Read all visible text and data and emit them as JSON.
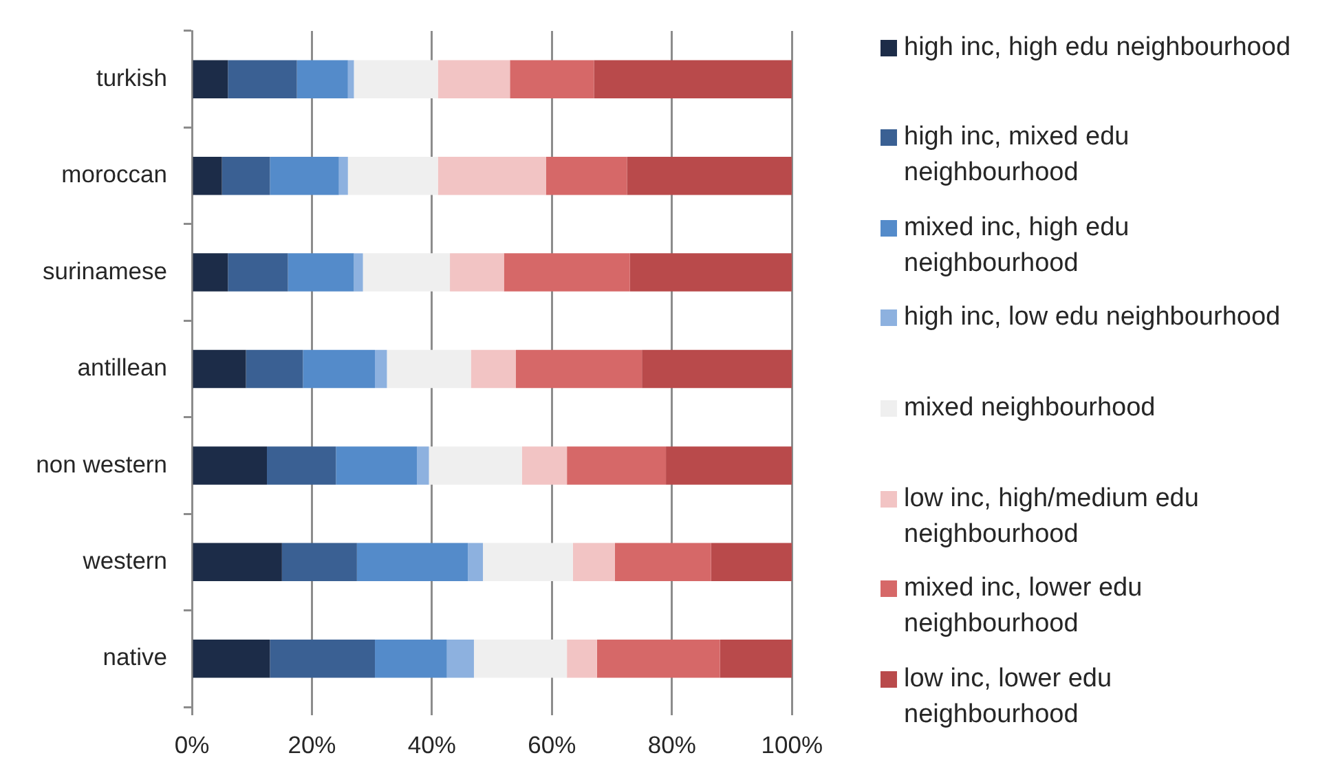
{
  "chart_data": {
    "type": "bar",
    "orientation": "horizontal",
    "stacked": true,
    "categories": [
      "turkish",
      "moroccan",
      "surinamese",
      "antillean",
      "non western",
      "western",
      "native"
    ],
    "series": [
      {
        "name": "high inc, high edu neighbourhood",
        "color": "#1c2c48",
        "values": [
          6,
          5,
          6,
          9,
          12.5,
          15,
          13
        ]
      },
      {
        "name": "high inc, mixed edu neighbourhood",
        "color": "#3a6093",
        "values": [
          11.5,
          8,
          10,
          9.5,
          11.5,
          12.5,
          17.5
        ]
      },
      {
        "name": "mixed inc, high edu neighbourhood",
        "color": "#548bca",
        "values": [
          8.5,
          11.5,
          11,
          12,
          13.5,
          18.5,
          12
        ]
      },
      {
        "name": "high inc, low edu neighbourhood",
        "color": "#8db1df",
        "values": [
          1,
          1.5,
          1.5,
          2,
          2,
          2.5,
          4.5
        ]
      },
      {
        "name": "mixed neighbourhood",
        "color": "#efefef",
        "values": [
          14,
          15,
          14.5,
          14,
          15.5,
          15,
          15.5
        ]
      },
      {
        "name": "low inc, high/medium edu neighbourhood",
        "color": "#f2c4c4",
        "values": [
          12,
          18,
          9,
          7.5,
          7.5,
          7,
          5
        ]
      },
      {
        "name": "mixed inc, lower edu neighbourhood",
        "color": "#d66868",
        "values": [
          14,
          13.5,
          21,
          21,
          16.5,
          16,
          20.5
        ]
      },
      {
        "name": "low inc, lower edu neighbourhood",
        "color": "#b94a4b",
        "values": [
          33,
          27.5,
          27,
          25,
          21,
          13.5,
          12
        ]
      }
    ],
    "xlim": [
      0,
      100
    ],
    "xticks": [
      {
        "value": 0,
        "label": "0%"
      },
      {
        "value": 20,
        "label": "20%"
      },
      {
        "value": 40,
        "label": "40%"
      },
      {
        "value": 60,
        "label": "60%"
      },
      {
        "value": 80,
        "label": "80%"
      },
      {
        "value": 100,
        "label": "100%"
      }
    ],
    "grid": "x",
    "legend": "right"
  }
}
